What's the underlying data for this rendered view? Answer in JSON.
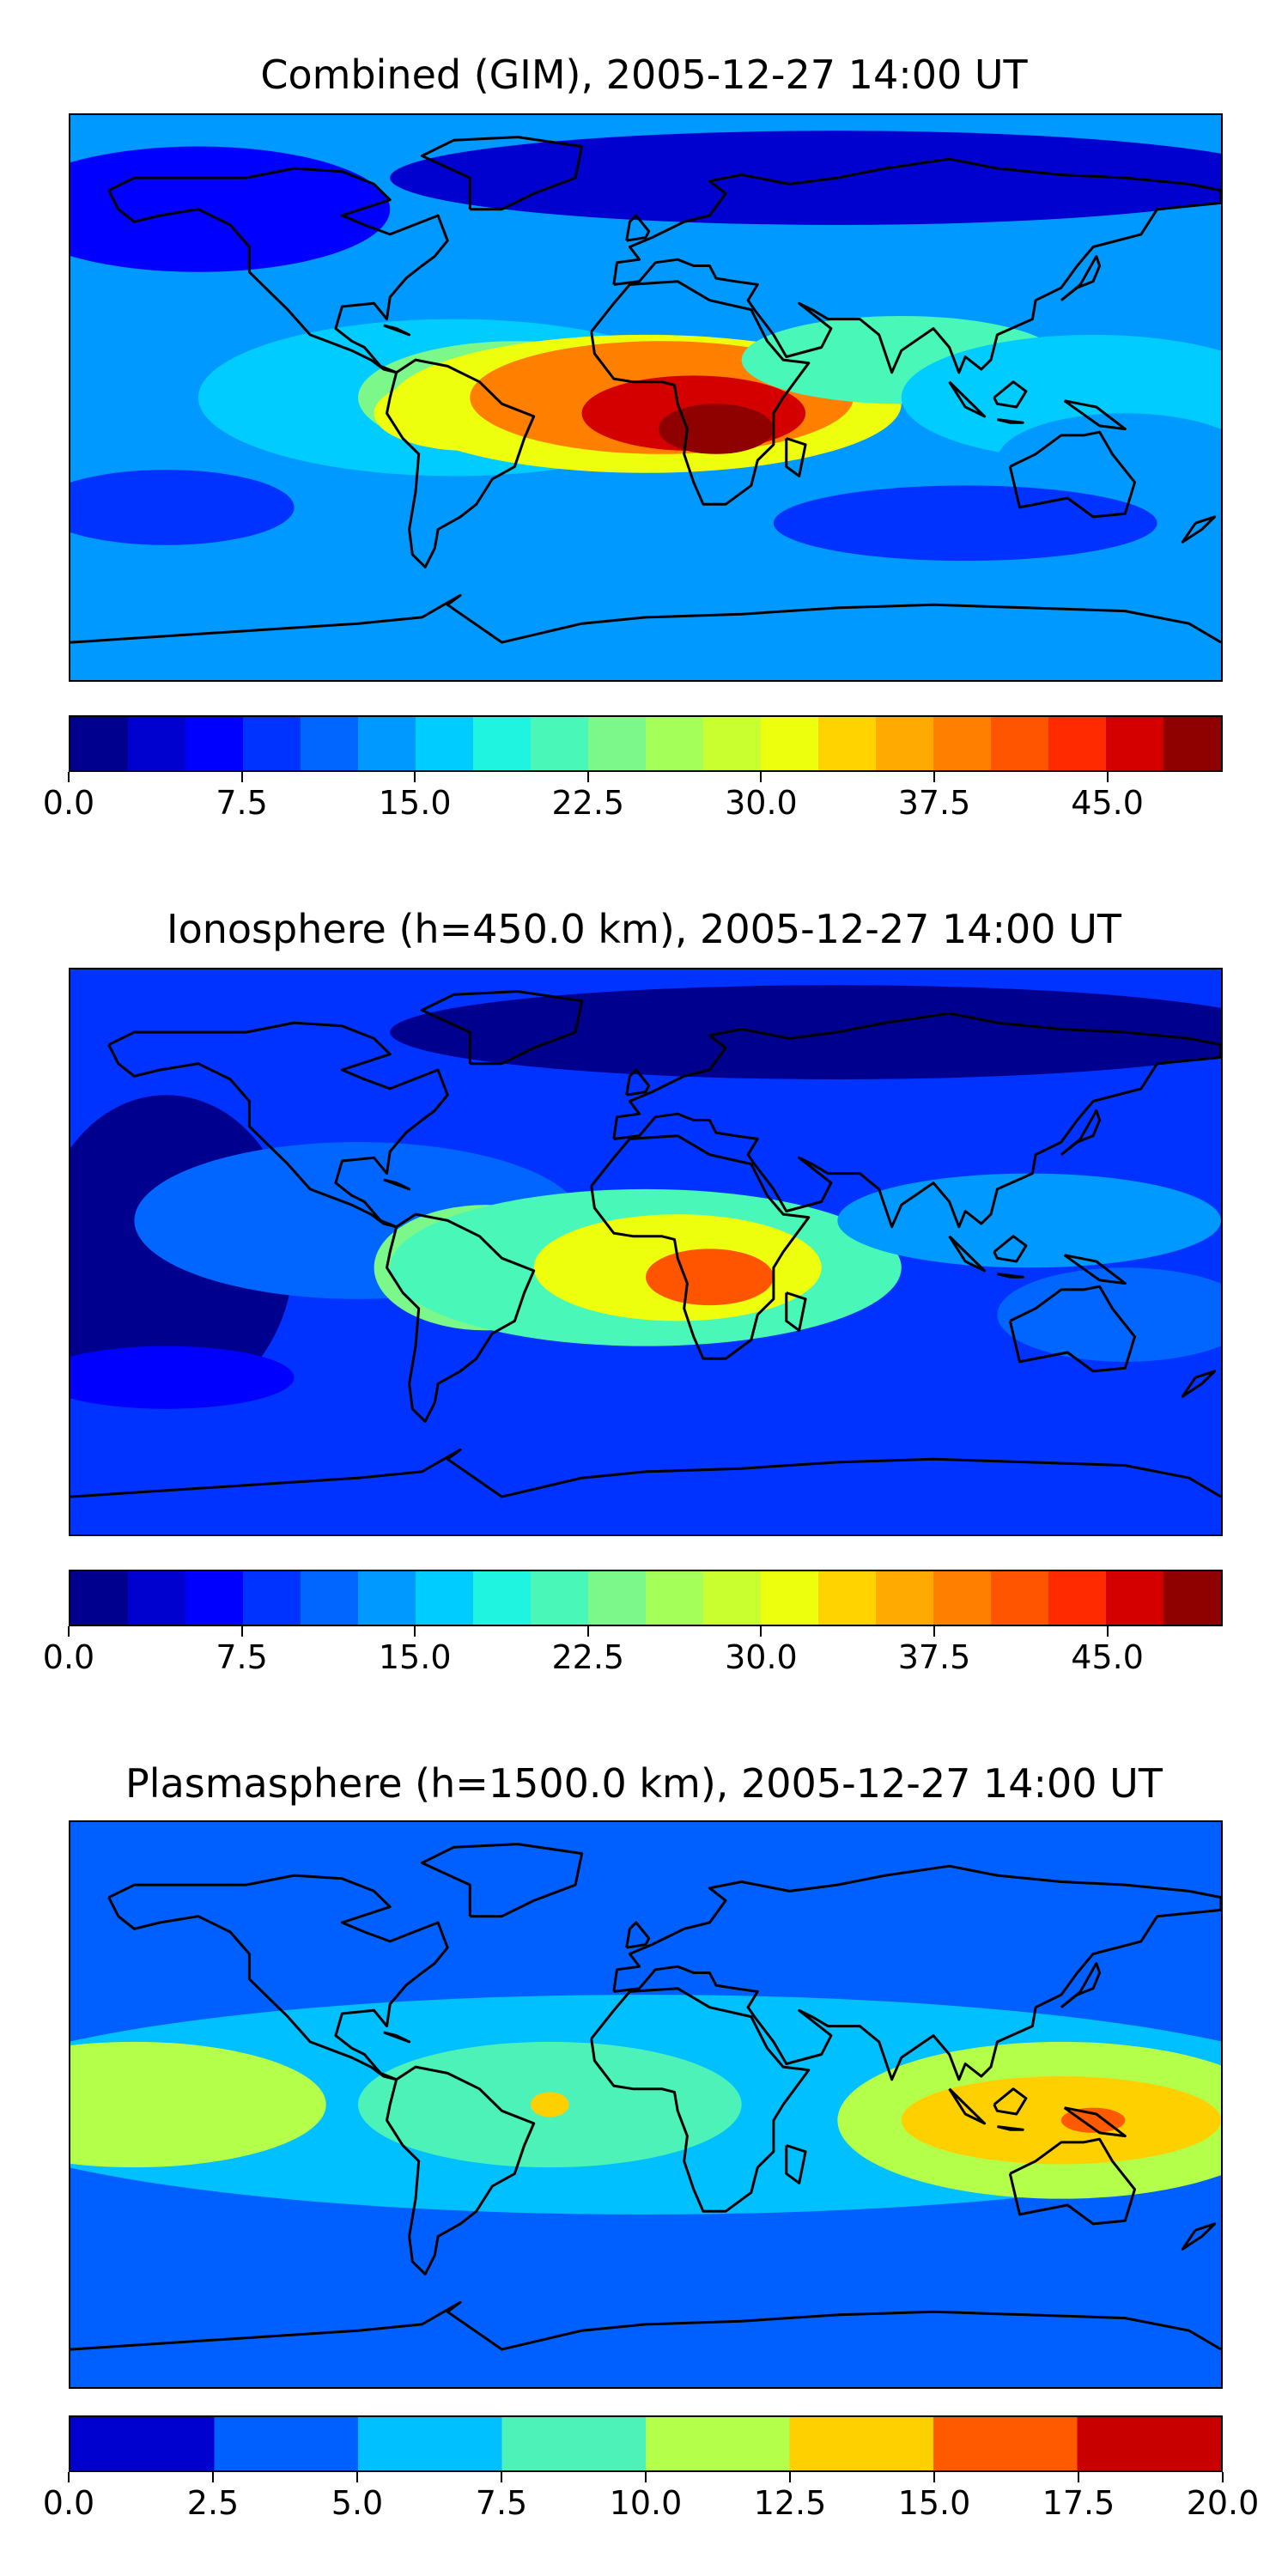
{
  "chart_data": [
    {
      "type": "heatmap",
      "title": "Combined (GIM), 2005-12-27 14:00 UT",
      "colorbar": {
        "levels": [
          0.0,
          2.5,
          5.0,
          7.5,
          10.0,
          12.5,
          15.0,
          17.5,
          20.0,
          22.5,
          25.0,
          27.5,
          30.0,
          32.5,
          35.0,
          37.5,
          40.0,
          42.5,
          45.0,
          47.5,
          50.0
        ],
        "colors": [
          "#00008f",
          "#0000cf",
          "#0000ff",
          "#0033ff",
          "#0066ff",
          "#0099ff",
          "#00ccff",
          "#1ff4e0",
          "#49f7b8",
          "#7cf78a",
          "#a4ff58",
          "#c9ff2f",
          "#eeff0e",
          "#ffd300",
          "#ffaa00",
          "#ff7f00",
          "#ff5500",
          "#ff2a00",
          "#d40000",
          "#8f0000"
        ],
        "tick_values": [
          0.0,
          7.5,
          15.0,
          22.5,
          30.0,
          37.5,
          45.0
        ],
        "tick_labels": [
          "0.0",
          "7.5",
          "15.0",
          "22.5",
          "30.0",
          "37.5",
          "45.0"
        ]
      },
      "background_level": 5,
      "blobs": [
        {
          "lon": -140,
          "lat": 60,
          "rx": 60,
          "ry": 20,
          "v": 5
        },
        {
          "lon": 60,
          "lat": 70,
          "rx": 140,
          "ry": 15,
          "v": 3
        },
        {
          "lon": -100,
          "lat": 10,
          "rx": 80,
          "ry": 20,
          "v": 13
        },
        {
          "lon": -60,
          "lat": 0,
          "rx": 80,
          "ry": 25,
          "v": 16
        },
        {
          "lon": -40,
          "lat": 0,
          "rx": 50,
          "ry": 18,
          "v": 23
        },
        {
          "lon": -55,
          "lat": -5,
          "rx": 30,
          "ry": 12,
          "v": 32
        },
        {
          "lon": 0,
          "lat": -2,
          "rx": 80,
          "ry": 22,
          "v": 30
        },
        {
          "lon": 5,
          "lat": 0,
          "rx": 60,
          "ry": 18,
          "v": 38
        },
        {
          "lon": 15,
          "lat": -5,
          "rx": 35,
          "ry": 12,
          "v": 45
        },
        {
          "lon": 22,
          "lat": -10,
          "rx": 18,
          "ry": 8,
          "v": 49
        },
        {
          "lon": 80,
          "lat": 12,
          "rx": 50,
          "ry": 14,
          "v": 20
        },
        {
          "lon": 140,
          "lat": 0,
          "rx": 60,
          "ry": 20,
          "v": 16
        },
        {
          "lon": 150,
          "lat": -20,
          "rx": 40,
          "ry": 15,
          "v": 13
        },
        {
          "lon": -150,
          "lat": -35,
          "rx": 40,
          "ry": 12,
          "v": 8
        },
        {
          "lon": 100,
          "lat": -40,
          "rx": 60,
          "ry": 12,
          "v": 9
        }
      ]
    },
    {
      "type": "heatmap",
      "title": "Ionosphere  (h=450.0 km), 2005-12-27 14:00 UT",
      "colorbar": {
        "levels": [
          0.0,
          2.5,
          5.0,
          7.5,
          10.0,
          12.5,
          15.0,
          17.5,
          20.0,
          22.5,
          25.0,
          27.5,
          30.0,
          32.5,
          35.0,
          37.5,
          40.0,
          42.5,
          45.0,
          47.5,
          50.0
        ],
        "colors": [
          "#00008f",
          "#0000cf",
          "#0000ff",
          "#0033ff",
          "#0066ff",
          "#0099ff",
          "#00ccff",
          "#1ff4e0",
          "#49f7b8",
          "#7cf78a",
          "#a4ff58",
          "#c9ff2f",
          "#eeff0e",
          "#ffd300",
          "#ffaa00",
          "#ff7f00",
          "#ff5500",
          "#ff2a00",
          "#d40000",
          "#8f0000"
        ],
        "tick_values": [
          0.0,
          7.5,
          15.0,
          22.5,
          30.0,
          37.5,
          45.0
        ],
        "tick_labels": [
          "0.0",
          "7.5",
          "15.0",
          "22.5",
          "30.0",
          "37.5",
          "45.0"
        ]
      },
      "background_level": 3,
      "blobs": [
        {
          "lon": -150,
          "lat": 0,
          "rx": 40,
          "ry": 50,
          "v": 2
        },
        {
          "lon": 60,
          "lat": 70,
          "rx": 140,
          "ry": 15,
          "v": 2
        },
        {
          "lon": -90,
          "lat": 10,
          "rx": 70,
          "ry": 25,
          "v": 10
        },
        {
          "lon": -50,
          "lat": -5,
          "rx": 35,
          "ry": 20,
          "v": 24
        },
        {
          "lon": 0,
          "lat": -5,
          "rx": 80,
          "ry": 25,
          "v": 20
        },
        {
          "lon": 10,
          "lat": -5,
          "rx": 45,
          "ry": 17,
          "v": 31
        },
        {
          "lon": 20,
          "lat": -8,
          "rx": 20,
          "ry": 9,
          "v": 40
        },
        {
          "lon": 120,
          "lat": 10,
          "rx": 60,
          "ry": 15,
          "v": 13
        },
        {
          "lon": 150,
          "lat": -20,
          "rx": 40,
          "ry": 15,
          "v": 11
        },
        {
          "lon": -150,
          "lat": -40,
          "rx": 40,
          "ry": 10,
          "v": 6
        }
      ]
    },
    {
      "type": "heatmap",
      "title": "Plasmasphere (h=1500.0 km), 2005-12-27 14:00 UT",
      "colorbar": {
        "levels": [
          0.0,
          2.5,
          5.0,
          7.5,
          10.0,
          12.5,
          15.0,
          17.5,
          20.0
        ],
        "colors": [
          "#0000cf",
          "#0060ff",
          "#00c0ff",
          "#4cf2b8",
          "#b4ff4a",
          "#ffd000",
          "#ff5a00",
          "#c80000"
        ],
        "tick_values": [
          0.0,
          2.5,
          5.0,
          7.5,
          10.0,
          12.5,
          15.0,
          17.5,
          20.0
        ],
        "tick_labels": [
          "0.0",
          "2.5",
          "5.0",
          "7.5",
          "10.0",
          "12.5",
          "15.0",
          "17.5",
          "20.0"
        ]
      },
      "background_level": 1,
      "blobs": [
        {
          "lon": 0,
          "lat": 0,
          "rx": 220,
          "ry": 35,
          "v": 5
        },
        {
          "lon": -160,
          "lat": 0,
          "rx": 60,
          "ry": 20,
          "v": 10
        },
        {
          "lon": -30,
          "lat": 0,
          "rx": 60,
          "ry": 20,
          "v": 9
        },
        {
          "lon": -30,
          "lat": 0,
          "rx": 6,
          "ry": 4,
          "v": 13
        },
        {
          "lon": 130,
          "lat": -5,
          "rx": 70,
          "ry": 25,
          "v": 10
        },
        {
          "lon": 130,
          "lat": -5,
          "rx": 50,
          "ry": 14,
          "v": 13
        },
        {
          "lon": 140,
          "lat": -5,
          "rx": 10,
          "ry": 4,
          "v": 16
        }
      ]
    }
  ]
}
